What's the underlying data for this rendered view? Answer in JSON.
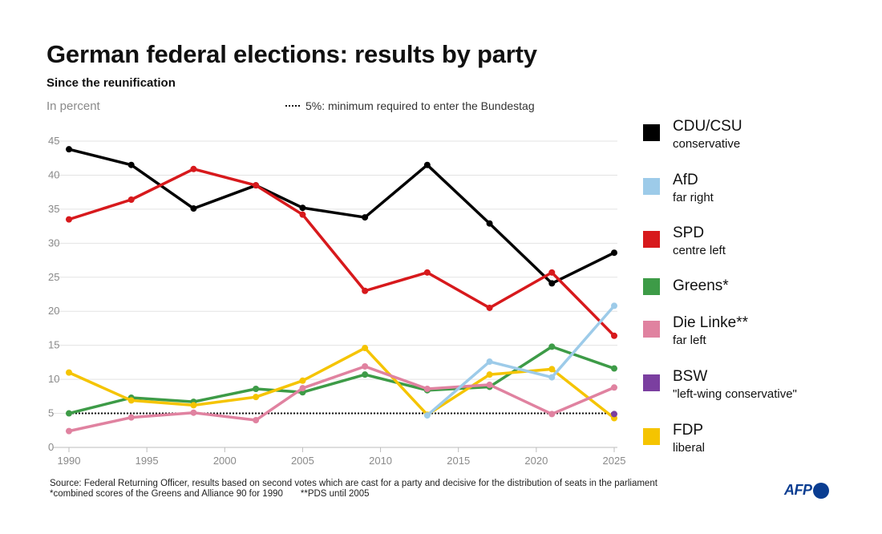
{
  "header": {
    "title": "German federal elections: results by party",
    "subtitle": "Since the reunification",
    "unit": "In percent",
    "threshold_note": "5%: minimum required to enter the Bundestag"
  },
  "legend": [
    {
      "name": "CDU/CSU",
      "desc": "conservative",
      "color": "#000000"
    },
    {
      "name": "AfD",
      "desc": "far right",
      "color": "#9dcbe9"
    },
    {
      "name": "SPD",
      "desc": "centre left",
      "color": "#d7191c"
    },
    {
      "name": "Greens*",
      "desc": "",
      "color": "#3d9b47"
    },
    {
      "name": "Die Linke**",
      "desc": "far left",
      "color": "#e082a0"
    },
    {
      "name": "BSW",
      "desc": "\"left-wing conservative\"",
      "color": "#7b3fa0"
    },
    {
      "name": "FDP",
      "desc": "liberal",
      "color": "#f5c400"
    }
  ],
  "footer": {
    "source": "Source: Federal Returning Officer, results based on second votes which are cast for a party and decisive for the distribution of seats in the parliament",
    "note1": "*combined scores of the Greens and Alliance 90 for 1990",
    "note2": "**PDS until 2005",
    "logo": "AFP"
  },
  "chart_data": {
    "type": "line",
    "title": "German federal elections: results by party",
    "subtitle": "Since the reunification",
    "ylabel": "In percent",
    "xlim": [
      1990,
      2025
    ],
    "ylim": [
      0,
      45
    ],
    "xticks": [
      1990,
      1995,
      2000,
      2005,
      2010,
      2015,
      2020,
      2025
    ],
    "yticks": [
      0,
      5,
      10,
      15,
      20,
      25,
      30,
      35,
      40,
      45
    ],
    "grid": "horizontal",
    "legend_position": "right",
    "threshold": {
      "value": 5,
      "style": "dotted",
      "label": "5%: minimum required to enter the Bundestag"
    },
    "series": [
      {
        "name": "CDU/CSU",
        "color": "#000000",
        "x": [
          1990,
          1994,
          1998,
          2002,
          2005,
          2009,
          2013,
          2017,
          2021,
          2025
        ],
        "y": [
          43.8,
          41.5,
          35.1,
          38.5,
          35.2,
          33.8,
          41.5,
          32.9,
          24.1,
          28.6
        ]
      },
      {
        "name": "SPD",
        "color": "#d7191c",
        "x": [
          1990,
          1994,
          1998,
          2002,
          2005,
          2009,
          2013,
          2017,
          2021,
          2025
        ],
        "y": [
          33.5,
          36.4,
          40.9,
          38.5,
          34.2,
          23.0,
          25.7,
          20.5,
          25.7,
          16.4
        ]
      },
      {
        "name": "Greens*",
        "color": "#3d9b47",
        "x": [
          1990,
          1994,
          1998,
          2002,
          2005,
          2009,
          2013,
          2017,
          2021,
          2025
        ],
        "y": [
          5.0,
          7.3,
          6.7,
          8.6,
          8.1,
          10.7,
          8.4,
          8.9,
          14.8,
          11.6
        ]
      },
      {
        "name": "FDP",
        "color": "#f5c400",
        "x": [
          1990,
          1994,
          1998,
          2002,
          2005,
          2009,
          2013,
          2017,
          2021,
          2025
        ],
        "y": [
          11.0,
          6.9,
          6.2,
          7.4,
          9.8,
          14.6,
          4.8,
          10.7,
          11.5,
          4.3
        ]
      },
      {
        "name": "Die Linke**",
        "color": "#e082a0",
        "x": [
          1990,
          1994,
          1998,
          2002,
          2005,
          2009,
          2013,
          2017,
          2021,
          2025
        ],
        "y": [
          2.4,
          4.4,
          5.1,
          4.0,
          8.7,
          11.9,
          8.6,
          9.2,
          4.9,
          8.8
        ]
      },
      {
        "name": "AfD",
        "color": "#9dcbe9",
        "x": [
          2013,
          2017,
          2021,
          2025
        ],
        "y": [
          4.7,
          12.6,
          10.3,
          20.8
        ]
      },
      {
        "name": "BSW",
        "color": "#7b3fa0",
        "x": [
          2025
        ],
        "y": [
          4.9
        ]
      }
    ]
  }
}
